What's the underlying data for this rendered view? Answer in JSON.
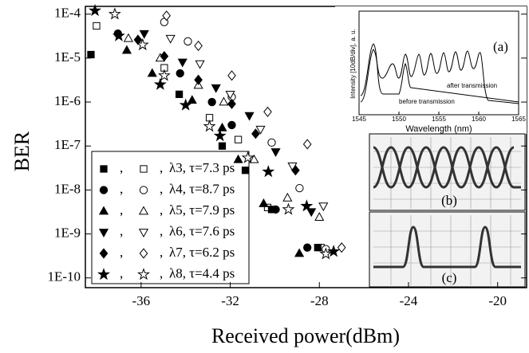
{
  "chart_data": {
    "type": "scatter",
    "x_label": "Received power(dBm)",
    "y_label": "BER",
    "log_y": true,
    "xlim": [
      -38.5,
      -18.7
    ],
    "ylim": [
      6e-11,
      0.00015
    ],
    "xticks": [
      -36,
      -32,
      -28,
      -24,
      -20
    ],
    "yticks": [
      {
        "value": 1e-10,
        "label": "1E-10"
      },
      {
        "value": 1e-09,
        "label": "1E-9"
      },
      {
        "value": 1e-08,
        "label": "1E-8"
      },
      {
        "value": 1e-07,
        "label": "1E-7"
      },
      {
        "value": 1e-06,
        "label": "1E-6"
      },
      {
        "value": 1e-05,
        "label": "1E-5"
      },
      {
        "value": 0.0001,
        "label": "1E-4"
      }
    ],
    "legend_separator": ",",
    "series": [
      {
        "name": "λ3, τ=7.3 ps",
        "marker": "square",
        "color": "#000",
        "filled": {
          "x": [
            -38.25,
            -34.29,
            -32.36,
            -31.32,
            -30.14,
            -28.07
          ],
          "values": [
            1.2e-05,
            1.5e-06,
            1e-07,
            2.8e-08,
            3.6e-09,
            4.9e-10
          ]
        },
        "open": {
          "x": [
            -38.0,
            -34.96,
            -32.93,
            -31.64,
            -30.32,
            -27.93
          ],
          "values": [
            5.4e-05,
            6e-06,
            4.4e-07,
            1.4e-07,
            4e-09,
            4.9e-10
          ]
        }
      },
      {
        "name": "λ4, τ=8.7 ps",
        "marker": "circle",
        "color": "#000",
        "filled": {
          "x": [
            -37.04,
            -34.25,
            -32.82,
            -31.93,
            -29.96,
            -28.54
          ],
          "values": [
            3.6e-05,
            4.5e-06,
            1e-06,
            3e-07,
            3.6e-09,
            4.9e-10
          ]
        },
        "open": {
          "x": [
            -34.96,
            -33.9,
            -31.93,
            -30.14,
            -28.89,
            -27.71
          ],
          "values": [
            6.6e-05,
            2.4e-05,
            1.3e-06,
            1.2e-07,
            1.1e-08,
            4.5e-10
          ]
        }
      },
      {
        "name": "λ5, τ=7.9 ps",
        "marker": "triangle",
        "color": "#000",
        "filled": {
          "x": [
            -36.64,
            -35.5,
            -33.71,
            -32.36,
            -31.64,
            -30.5,
            -28.9
          ],
          "values": [
            1.5e-05,
            4.5e-06,
            1.1e-06,
            2.6e-07,
            4.9e-08,
            4.9e-09,
            3.6e-10
          ]
        },
        "open": {
          "x": [
            -36.57,
            -35.14,
            -33.43,
            -32.29,
            -30.93,
            -29.43,
            -28.0
          ],
          "values": [
            2.8e-05,
            1e-05,
            2.4e-06,
            1e-06,
            4.9e-08,
            6.6e-09,
            2.4e-09
          ]
        }
      },
      {
        "name": "λ6, τ=7.6 ps",
        "marker": "invtriangle",
        "color": "#000",
        "filled": {
          "x": [
            -35.86,
            -34.14,
            -32.64,
            -31.14,
            -29.96,
            -28.36
          ],
          "values": [
            3.6e-05,
            8.1e-06,
            2.1e-06,
            4.9e-07,
            7.4e-08,
            3.2e-09
          ]
        },
        "open": {
          "x": [
            -34.68,
            -33.36,
            -32.0,
            -30.64,
            -29.21,
            -27.82
          ],
          "values": [
            2.8e-05,
            7.4e-06,
            1.5e-06,
            2.4e-07,
            3.5e-08,
            4.3e-09
          ]
        }
      },
      {
        "name": "λ7, τ=6.2 ps",
        "marker": "diamond",
        "color": "#000",
        "filled": {
          "x": [
            -36.14,
            -34.96,
            -33.43,
            -31.93,
            -30.86,
            -29.07
          ],
          "values": [
            2.6e-05,
            1.1e-05,
            3.2e-06,
            9.1e-07,
            1.9e-07,
            2.8e-08
          ]
        },
        "open": {
          "x": [
            -34.86,
            -33.43,
            -31.93,
            -30.32,
            -28.54,
            -27.0
          ],
          "values": [
            9.2e-05,
            1.9e-05,
            4e-06,
            6e-07,
            1.1e-07,
            4.9e-10
          ]
        }
      },
      {
        "name": "λ8, τ=4.4 ps",
        "marker": "star",
        "color": "#000",
        "filled": {
          "x": [
            -38.07,
            -37.0,
            -35.14,
            -34.0,
            -32.46,
            -30.29,
            -28.57,
            -27.36
          ],
          "values": [
            0.00012,
            3.2e-05,
            2.5e-06,
            8.5e-07,
            1.7e-07,
            2.6e-08,
            4.3e-09,
            4e-10
          ]
        },
        "open": {
          "x": [
            -37.18,
            -35.93,
            -34.96,
            -32.93,
            -31.21,
            -29.39,
            -27.71
          ],
          "values": [
            0.0001,
            2e-05,
            4e-06,
            2.8e-07,
            5.4e-08,
            3.6e-09,
            3.5e-10
          ]
        }
      }
    ]
  },
  "insets": {
    "a": {
      "label": "(a)",
      "y_label": "Intensity [10dB/div], a. u.",
      "x_label": "Wavelength (nm)",
      "after": "after transmission",
      "before": "before transmission",
      "xticks": [
        1545,
        1550,
        1555,
        1560,
        1565
      ]
    },
    "b": {
      "label": "(b)"
    },
    "c": {
      "label": "(c)"
    }
  }
}
